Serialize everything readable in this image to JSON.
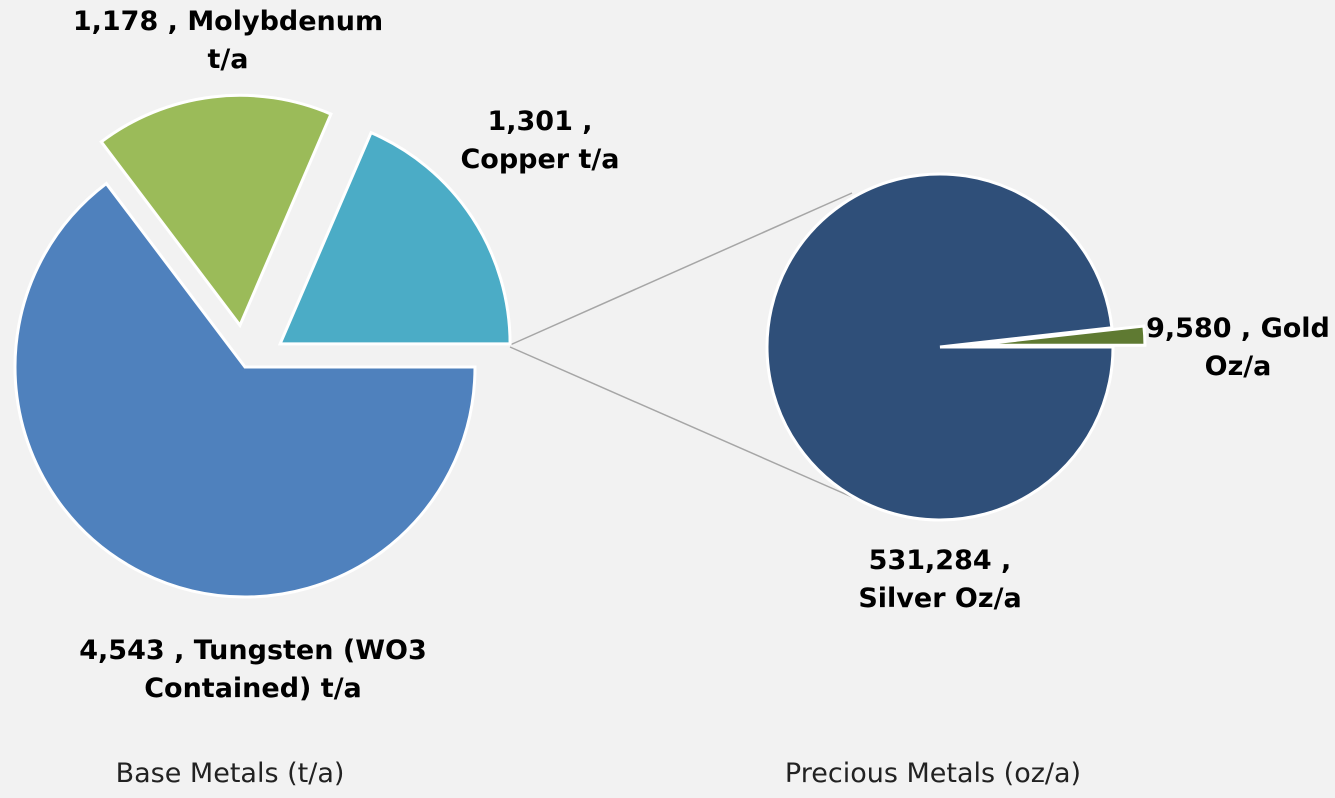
{
  "chart_data": [
    {
      "type": "pie",
      "title": "Base Metals (t/a)",
      "categories": [
        "Tungsten (WO3 Contained) t/a",
        "Molybdenum t/a",
        "Copper t/a"
      ],
      "values": [
        4543,
        1178,
        1301
      ],
      "value_labels": [
        "4,543 ,",
        "1,178 ,",
        "1,301 ,"
      ],
      "colors": [
        "#4f81bd",
        "#9bbb59",
        "#4bacc6"
      ]
    },
    {
      "type": "pie",
      "title": "Precious Metals (oz/a)",
      "categories": [
        "Silver Oz/a",
        "Gold Oz/a"
      ],
      "values": [
        531284,
        9580
      ],
      "value_labels": [
        "531,284 ,",
        "9,580 ,"
      ],
      "colors": [
        "#2f4f79",
        "#5f7a32"
      ]
    }
  ]
}
